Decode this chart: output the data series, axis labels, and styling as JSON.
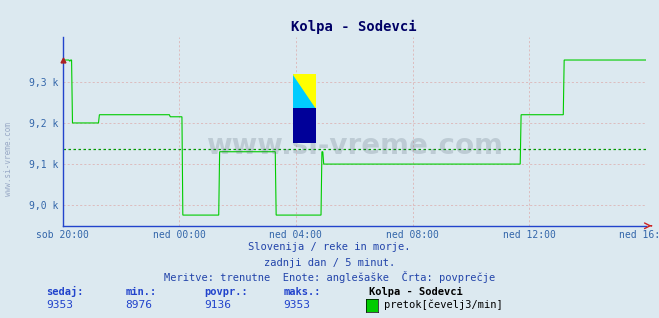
{
  "title": "Kolpa - Sodevci",
  "bg_color": "#dce9f0",
  "plot_bg_color": "#dce9f0",
  "line_color": "#00cc00",
  "avg_line_color": "#009900",
  "avg_value": 9136,
  "ymin": 8950,
  "ymax": 9410,
  "yticks": [
    9000,
    9100,
    9200,
    9300
  ],
  "ytick_labels": [
    "9,0 k",
    "9,1 k",
    "9,2 k",
    "9,3 k"
  ],
  "xtick_labels": [
    "sob 20:00",
    "ned 00:00",
    "ned 04:00",
    "ned 08:00",
    "ned 12:00",
    "ned 16:00"
  ],
  "footer_line1": "Slovenija / reke in morje.",
  "footer_line2": "zadnji dan / 5 minut.",
  "footer_line3": "Meritve: trenutne  Enote: anglešaške  Črta: povprečje",
  "stat_sedaj": 9353,
  "stat_min": 8976,
  "stat_povpr": 9136,
  "stat_maks": 9353,
  "watermark": "www.si-vreme.com",
  "data_y": [
    9353,
    9353,
    9353,
    9353,
    9353,
    9353,
    9353,
    9353,
    9350,
    9353,
    9353,
    9200,
    9200,
    9200,
    9200,
    9200,
    9200,
    9200,
    9200,
    9200,
    9200,
    9200,
    9200,
    9200,
    9200,
    9200,
    9200,
    9200,
    9200,
    9200,
    9200,
    9200,
    9200,
    9200,
    9200,
    9200,
    9200,
    9200,
    9200,
    9200,
    9200,
    9220,
    9220,
    9220,
    9220,
    9220,
    9220,
    9220,
    9220,
    9220,
    9220,
    9220,
    9220,
    9220,
    9220,
    9220,
    9220,
    9220,
    9220,
    9220,
    9220,
    9220,
    9220,
    9220,
    9220,
    9220,
    9220,
    9220,
    9220,
    9220,
    9220,
    9220,
    9220,
    9220,
    9220,
    9220,
    9220,
    9220,
    9220,
    9220,
    9220,
    9220,
    9220,
    9220,
    9220,
    9220,
    9220,
    9220,
    9220,
    9220,
    9220,
    9220,
    9220,
    9220,
    9220,
    9220,
    9220,
    9220,
    9220,
    9220,
    9220,
    9220,
    9220,
    9220,
    9220,
    9220,
    9220,
    9220,
    9220,
    9220,
    9220,
    9220,
    9220,
    9220,
    9220,
    9220,
    9220,
    9220,
    9220,
    9220,
    9215,
    9215,
    9215,
    9215,
    9215,
    9215,
    9215,
    9215,
    9215,
    9215,
    9215,
    9215,
    9215,
    9215,
    8976,
    8976,
    8976,
    8976,
    8976,
    8976,
    8976,
    8976,
    8976,
    8976,
    8976,
    8976,
    8976,
    8976,
    8976,
    8976,
    8976,
    8976,
    8976,
    8976,
    8976,
    8976,
    8976,
    8976,
    8976,
    8976,
    8976,
    8976,
    8976,
    8976,
    8976,
    8976,
    8976,
    8976,
    8976,
    8976,
    8976,
    8976,
    8976,
    8976,
    8976,
    9130,
    9130,
    9130,
    9130,
    9130,
    9130,
    9130,
    9130,
    9130,
    9130,
    9130,
    9130,
    9130,
    9130,
    9130,
    9130,
    9130,
    9130,
    9130,
    9130,
    9130,
    9130,
    9130,
    9130,
    9130,
    9130,
    9130,
    9130,
    9130,
    9130,
    9130,
    9130,
    9130,
    9130,
    9130,
    9130,
    9130,
    9130,
    9130,
    9130,
    9130,
    9130,
    9130,
    9130,
    9130,
    9130,
    9130,
    9130,
    9130,
    9130,
    9130,
    9130,
    9130,
    9130,
    9130,
    9130,
    9130,
    9130,
    9130,
    9130,
    9130,
    9130,
    9130,
    8976,
    8976,
    8976,
    8976,
    8976,
    8976,
    8976,
    8976,
    8976,
    8976,
    8976,
    8976,
    8976,
    8976,
    8976,
    8976,
    8976,
    8976,
    8976,
    8976,
    8976,
    8976,
    8976,
    8976,
    8976,
    8976,
    8976,
    8976,
    8976,
    8976,
    8976,
    8976,
    8976,
    8976,
    8976,
    8976,
    8976,
    8976,
    8976,
    8976,
    8976,
    8976,
    8976,
    8976,
    8976,
    8976,
    8976,
    8976,
    8976,
    8976,
    8976,
    9130,
    9130,
    9100,
    9100,
    9100,
    9100,
    9100,
    9100,
    9100,
    9100,
    9100,
    9100,
    9100,
    9100,
    9100,
    9100,
    9100,
    9100,
    9100,
    9100,
    9100,
    9100,
    9100,
    9100,
    9100,
    9100,
    9100,
    9100,
    9100,
    9100,
    9100,
    9100,
    9100,
    9100,
    9100,
    9100,
    9100,
    9100,
    9100,
    9100,
    9100,
    9100,
    9100,
    9100,
    9100,
    9100,
    9100,
    9100,
    9100,
    9100,
    9100,
    9100,
    9100,
    9100,
    9100,
    9100,
    9100,
    9100,
    9100,
    9100,
    9100,
    9100,
    9100,
    9100,
    9100,
    9100,
    9100,
    9100,
    9100,
    9100,
    9100,
    9100,
    9100,
    9100,
    9100,
    9100,
    9100,
    9100,
    9100,
    9100,
    9100,
    9100,
    9100,
    9100,
    9100,
    9100,
    9100,
    9100,
    9100,
    9100,
    9100,
    9100,
    9100,
    9100,
    9100,
    9100,
    9100,
    9100,
    9100,
    9100,
    9100,
    9100,
    9100,
    9100,
    9100,
    9100,
    9100,
    9100,
    9100,
    9100,
    9100,
    9100,
    9100,
    9100,
    9100,
    9100,
    9100,
    9100,
    9100,
    9100,
    9100,
    9100,
    9100,
    9100,
    9100,
    9100,
    9100,
    9100,
    9100,
    9100,
    9100,
    9100,
    9100,
    9100,
    9100,
    9100,
    9100,
    9100,
    9100,
    9100,
    9100,
    9100,
    9100,
    9100,
    9100,
    9100,
    9100,
    9100,
    9100,
    9100,
    9100,
    9100,
    9100,
    9100,
    9100,
    9100,
    9100,
    9100,
    9100,
    9100,
    9100,
    9100,
    9100,
    9100,
    9100,
    9100,
    9100,
    9100,
    9100,
    9100,
    9100,
    9100,
    9100,
    9100,
    9100,
    9100,
    9100,
    9100,
    9100,
    9100,
    9100,
    9100,
    9100,
    9100,
    9100,
    9100,
    9100,
    9100,
    9100,
    9100,
    9100,
    9100,
    9100,
    9100,
    9100,
    9100,
    9100,
    9100,
    9100,
    9100,
    9100,
    9100,
    9100,
    9100,
    9100,
    9100,
    9100,
    9100,
    9100,
    9100,
    9100,
    9100,
    9100,
    9100,
    9100,
    9100,
    9100,
    9100,
    9100,
    9100,
    9100,
    9100,
    9220,
    9220,
    9220,
    9220,
    9220,
    9220,
    9220,
    9220,
    9220,
    9220,
    9220,
    9220,
    9220,
    9220,
    9220,
    9220,
    9220,
    9220,
    9220,
    9220,
    9220,
    9220,
    9220,
    9220,
    9220,
    9220,
    9220,
    9220,
    9220,
    9220,
    9220,
    9220,
    9220,
    9220,
    9220,
    9220,
    9220,
    9220,
    9220,
    9220,
    9220,
    9220,
    9220,
    9220,
    9220,
    9220,
    9220,
    9220,
    9353,
    9353,
    9353,
    9353,
    9353,
    9353,
    9353,
    9353,
    9353,
    9353,
    9353,
    9353,
    9353,
    9353,
    9353,
    9353,
    9353,
    9353,
    9353,
    9353,
    9353,
    9353,
    9353,
    9353,
    9353,
    9353,
    9353,
    9353,
    9353,
    9353,
    9353,
    9353,
    9353,
    9353,
    9353,
    9353,
    9353,
    9353,
    9353,
    9353,
    9353,
    9353,
    9353,
    9353,
    9353,
    9353,
    9353,
    9353,
    9353,
    9353,
    9353,
    9353,
    9353,
    9353,
    9353,
    9353,
    9353,
    9353,
    9353,
    9353,
    9353,
    9353,
    9353,
    9353,
    9353,
    9353,
    9353,
    9353,
    9353,
    9353,
    9353,
    9353,
    9353,
    9353,
    9353,
    9353,
    9353,
    9353,
    9353,
    9353,
    9353,
    9353,
    9353,
    9353,
    9353,
    9353,
    9353,
    9353,
    9353,
    9353,
    9353,
    9353
  ]
}
